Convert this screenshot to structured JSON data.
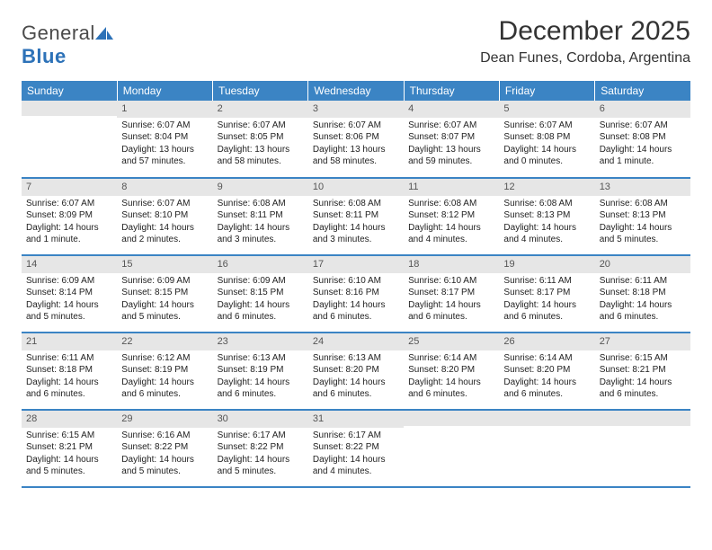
{
  "logo": {
    "part1": "General",
    "part2": "Blue"
  },
  "title": "December 2025",
  "location": "Dean Funes, Cordoba, Argentina",
  "colors": {
    "header_bg": "#3b84c4",
    "header_fg": "#ffffff",
    "daynum_bg": "#e6e6e6",
    "row_border": "#3b84c4",
    "title_color": "#333333",
    "logo_gray": "#4a4a4a",
    "logo_blue": "#2d72b8",
    "text_color": "#222222",
    "background": "#ffffff"
  },
  "weekdays": [
    "Sunday",
    "Monday",
    "Tuesday",
    "Wednesday",
    "Thursday",
    "Friday",
    "Saturday"
  ],
  "weeks": [
    [
      {
        "n": "",
        "sr": "",
        "ss": "",
        "dl": ""
      },
      {
        "n": "1",
        "sr": "Sunrise: 6:07 AM",
        "ss": "Sunset: 8:04 PM",
        "dl": "Daylight: 13 hours and 57 minutes."
      },
      {
        "n": "2",
        "sr": "Sunrise: 6:07 AM",
        "ss": "Sunset: 8:05 PM",
        "dl": "Daylight: 13 hours and 58 minutes."
      },
      {
        "n": "3",
        "sr": "Sunrise: 6:07 AM",
        "ss": "Sunset: 8:06 PM",
        "dl": "Daylight: 13 hours and 58 minutes."
      },
      {
        "n": "4",
        "sr": "Sunrise: 6:07 AM",
        "ss": "Sunset: 8:07 PM",
        "dl": "Daylight: 13 hours and 59 minutes."
      },
      {
        "n": "5",
        "sr": "Sunrise: 6:07 AM",
        "ss": "Sunset: 8:08 PM",
        "dl": "Daylight: 14 hours and 0 minutes."
      },
      {
        "n": "6",
        "sr": "Sunrise: 6:07 AM",
        "ss": "Sunset: 8:08 PM",
        "dl": "Daylight: 14 hours and 1 minute."
      }
    ],
    [
      {
        "n": "7",
        "sr": "Sunrise: 6:07 AM",
        "ss": "Sunset: 8:09 PM",
        "dl": "Daylight: 14 hours and 1 minute."
      },
      {
        "n": "8",
        "sr": "Sunrise: 6:07 AM",
        "ss": "Sunset: 8:10 PM",
        "dl": "Daylight: 14 hours and 2 minutes."
      },
      {
        "n": "9",
        "sr": "Sunrise: 6:08 AM",
        "ss": "Sunset: 8:11 PM",
        "dl": "Daylight: 14 hours and 3 minutes."
      },
      {
        "n": "10",
        "sr": "Sunrise: 6:08 AM",
        "ss": "Sunset: 8:11 PM",
        "dl": "Daylight: 14 hours and 3 minutes."
      },
      {
        "n": "11",
        "sr": "Sunrise: 6:08 AM",
        "ss": "Sunset: 8:12 PM",
        "dl": "Daylight: 14 hours and 4 minutes."
      },
      {
        "n": "12",
        "sr": "Sunrise: 6:08 AM",
        "ss": "Sunset: 8:13 PM",
        "dl": "Daylight: 14 hours and 4 minutes."
      },
      {
        "n": "13",
        "sr": "Sunrise: 6:08 AM",
        "ss": "Sunset: 8:13 PM",
        "dl": "Daylight: 14 hours and 5 minutes."
      }
    ],
    [
      {
        "n": "14",
        "sr": "Sunrise: 6:09 AM",
        "ss": "Sunset: 8:14 PM",
        "dl": "Daylight: 14 hours and 5 minutes."
      },
      {
        "n": "15",
        "sr": "Sunrise: 6:09 AM",
        "ss": "Sunset: 8:15 PM",
        "dl": "Daylight: 14 hours and 5 minutes."
      },
      {
        "n": "16",
        "sr": "Sunrise: 6:09 AM",
        "ss": "Sunset: 8:15 PM",
        "dl": "Daylight: 14 hours and 6 minutes."
      },
      {
        "n": "17",
        "sr": "Sunrise: 6:10 AM",
        "ss": "Sunset: 8:16 PM",
        "dl": "Daylight: 14 hours and 6 minutes."
      },
      {
        "n": "18",
        "sr": "Sunrise: 6:10 AM",
        "ss": "Sunset: 8:17 PM",
        "dl": "Daylight: 14 hours and 6 minutes."
      },
      {
        "n": "19",
        "sr": "Sunrise: 6:11 AM",
        "ss": "Sunset: 8:17 PM",
        "dl": "Daylight: 14 hours and 6 minutes."
      },
      {
        "n": "20",
        "sr": "Sunrise: 6:11 AM",
        "ss": "Sunset: 8:18 PM",
        "dl": "Daylight: 14 hours and 6 minutes."
      }
    ],
    [
      {
        "n": "21",
        "sr": "Sunrise: 6:11 AM",
        "ss": "Sunset: 8:18 PM",
        "dl": "Daylight: 14 hours and 6 minutes."
      },
      {
        "n": "22",
        "sr": "Sunrise: 6:12 AM",
        "ss": "Sunset: 8:19 PM",
        "dl": "Daylight: 14 hours and 6 minutes."
      },
      {
        "n": "23",
        "sr": "Sunrise: 6:13 AM",
        "ss": "Sunset: 8:19 PM",
        "dl": "Daylight: 14 hours and 6 minutes."
      },
      {
        "n": "24",
        "sr": "Sunrise: 6:13 AM",
        "ss": "Sunset: 8:20 PM",
        "dl": "Daylight: 14 hours and 6 minutes."
      },
      {
        "n": "25",
        "sr": "Sunrise: 6:14 AM",
        "ss": "Sunset: 8:20 PM",
        "dl": "Daylight: 14 hours and 6 minutes."
      },
      {
        "n": "26",
        "sr": "Sunrise: 6:14 AM",
        "ss": "Sunset: 8:20 PM",
        "dl": "Daylight: 14 hours and 6 minutes."
      },
      {
        "n": "27",
        "sr": "Sunrise: 6:15 AM",
        "ss": "Sunset: 8:21 PM",
        "dl": "Daylight: 14 hours and 6 minutes."
      }
    ],
    [
      {
        "n": "28",
        "sr": "Sunrise: 6:15 AM",
        "ss": "Sunset: 8:21 PM",
        "dl": "Daylight: 14 hours and 5 minutes."
      },
      {
        "n": "29",
        "sr": "Sunrise: 6:16 AM",
        "ss": "Sunset: 8:22 PM",
        "dl": "Daylight: 14 hours and 5 minutes."
      },
      {
        "n": "30",
        "sr": "Sunrise: 6:17 AM",
        "ss": "Sunset: 8:22 PM",
        "dl": "Daylight: 14 hours and 5 minutes."
      },
      {
        "n": "31",
        "sr": "Sunrise: 6:17 AM",
        "ss": "Sunset: 8:22 PM",
        "dl": "Daylight: 14 hours and 4 minutes."
      },
      {
        "n": "",
        "sr": "",
        "ss": "",
        "dl": ""
      },
      {
        "n": "",
        "sr": "",
        "ss": "",
        "dl": ""
      },
      {
        "n": "",
        "sr": "",
        "ss": "",
        "dl": ""
      }
    ]
  ]
}
